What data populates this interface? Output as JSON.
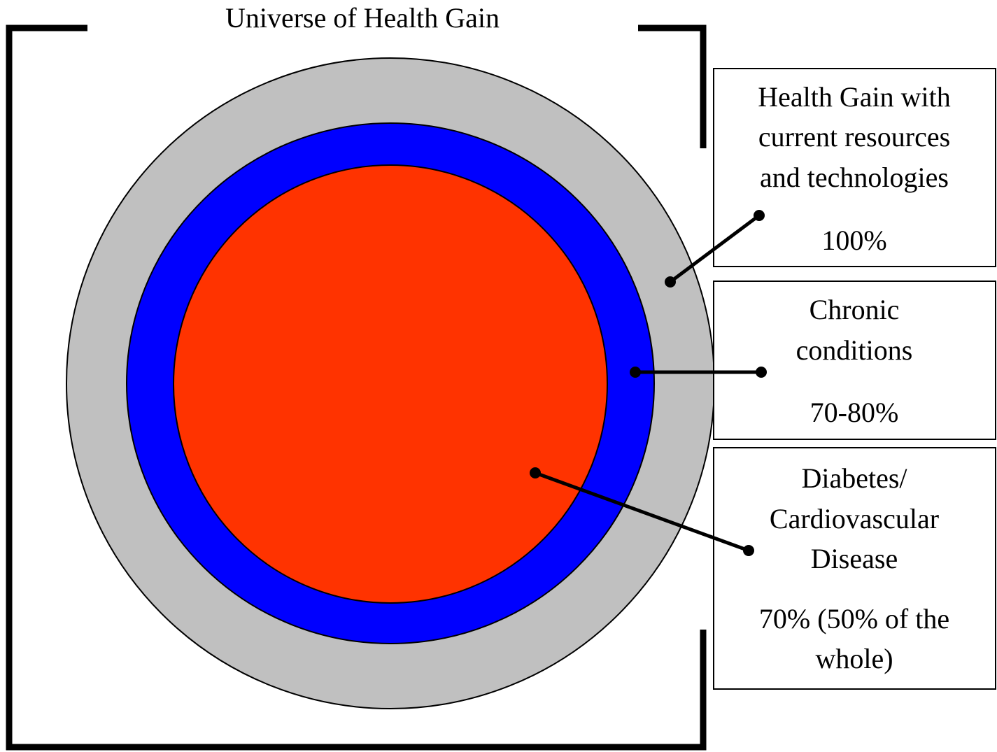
{
  "title": "Universe of Health Gain",
  "boxes": [
    {
      "lines": [
        "Health Gain with",
        "current resources",
        "and technologies"
      ],
      "share": "100%"
    },
    {
      "lines": [
        "Chronic",
        "conditions"
      ],
      "share": "70-80%"
    },
    {
      "lines": [
        "Diabetes/",
        "Cardiovascular",
        "Disease"
      ],
      "share": [
        "70% (50% of the",
        "whole)"
      ]
    }
  ]
}
